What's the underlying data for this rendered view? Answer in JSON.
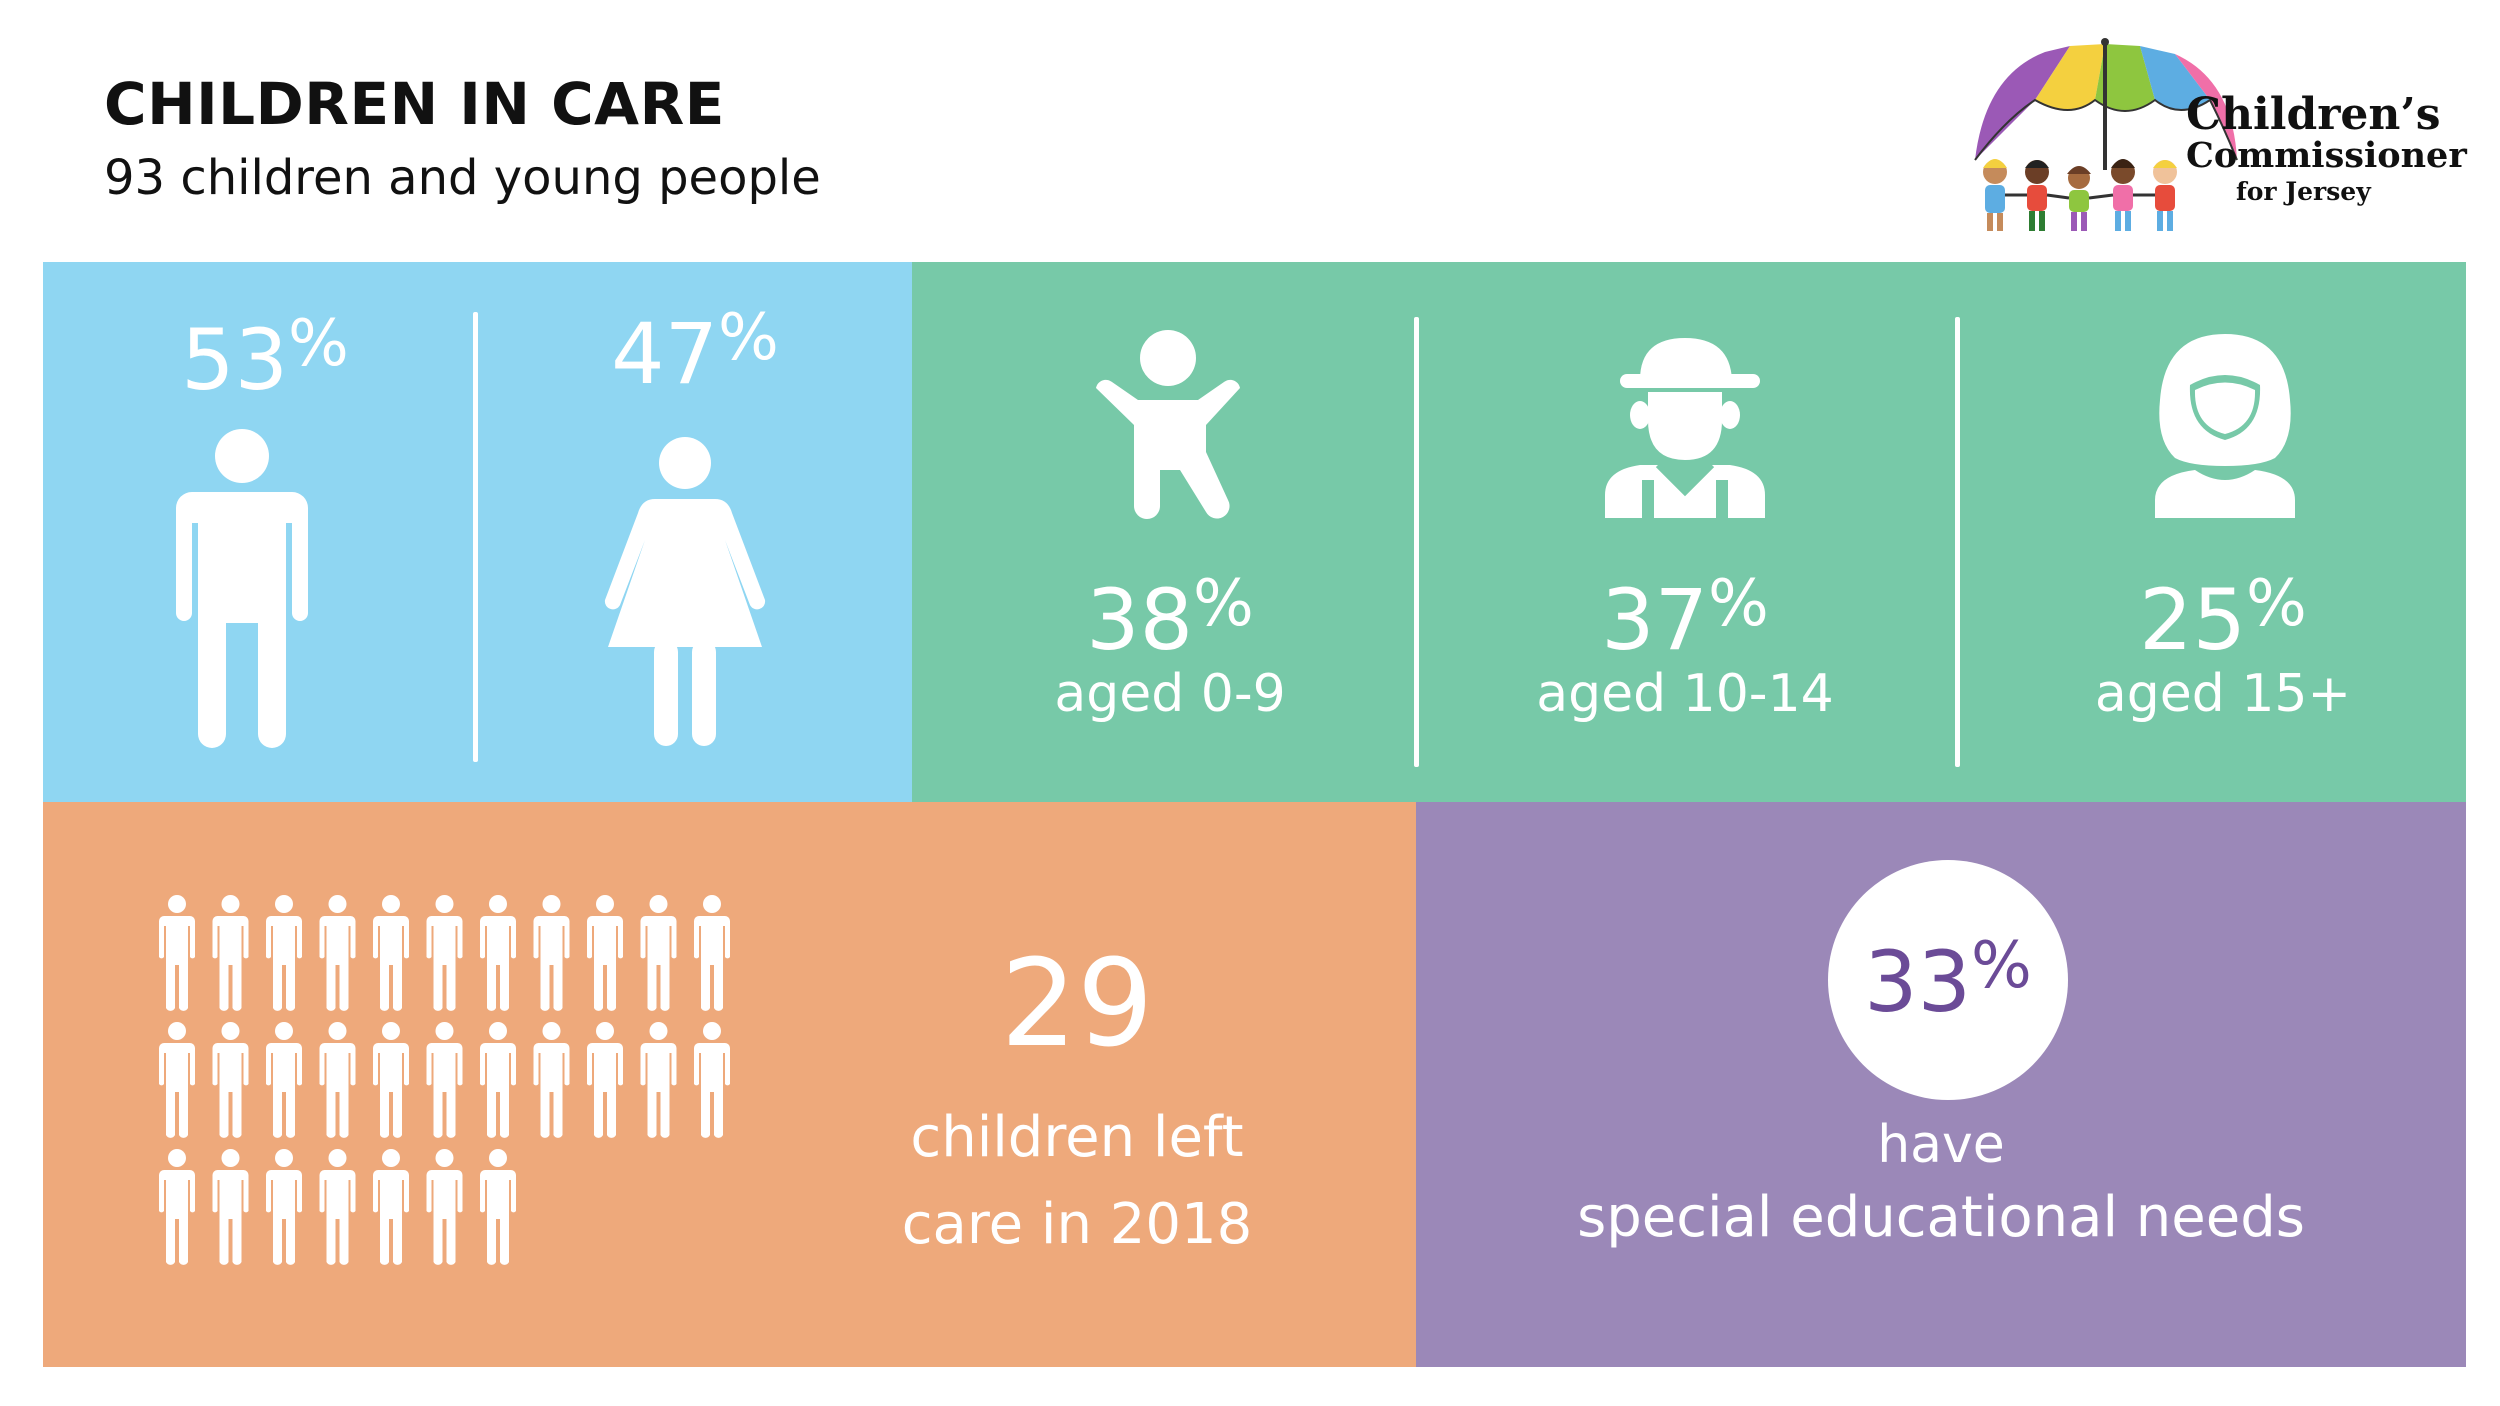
{
  "header": {
    "title": "CHILDREN IN CARE",
    "subtitle": "93 children and young people"
  },
  "logo": {
    "line1": "Children’s",
    "line2": "Commissioner",
    "line3": "for Jersey",
    "umbrella_colors": [
      "#9b59b6",
      "#f4d03f",
      "#8ec63f",
      "#5dade2",
      "#f06fa8"
    ]
  },
  "gender": {
    "male": {
      "value": "53",
      "sign": "%"
    },
    "female": {
      "value": "47",
      "sign": "%"
    }
  },
  "age_groups": [
    {
      "value": "38",
      "sign": "%",
      "label": "aged 0-9"
    },
    {
      "value": "37",
      "sign": "%",
      "label": "aged 10-14"
    },
    {
      "value": "25",
      "sign": "%",
      "label": "aged 15+"
    }
  ],
  "left_care": {
    "count": "29",
    "label_line1": "children left",
    "label_line2": "care in 2018",
    "figure_count": 29
  },
  "sen": {
    "value": "33",
    "sign": "%",
    "line1": "have",
    "line2": "special educational needs"
  },
  "colors": {
    "blue": "#8fd6f2",
    "green": "#77c9a8",
    "orange": "#eea97b",
    "purple": "#9b88b8",
    "sen_text": "#6b4b97"
  }
}
